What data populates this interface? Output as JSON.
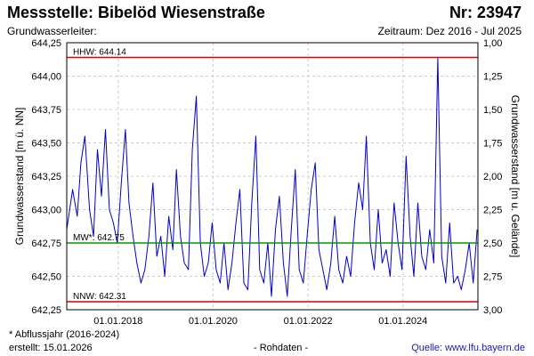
{
  "header": {
    "title_left": "Messstelle: Bibelöd Wiesenstraße",
    "title_right": "Nr: 23947",
    "subtitle_left": "Grundwasserleiter:",
    "subtitle_right": "Zeitraum: Dez 2016 - Jul 2025"
  },
  "footer": {
    "note": "* Abflussjahr (2016-2024)",
    "created": "erstellt:  15.01.2026",
    "middle": "- Rohdaten -",
    "source": "Quelle:  www.lfu.bayern.de"
  },
  "colors": {
    "series": "#0000cc",
    "extreme_lines": "#e00000",
    "mean_line": "#009900",
    "grid": "#cccccc"
  },
  "chart_data": {
    "type": "line",
    "ylabel": "Grundwasserstand [m ü. NN]",
    "ylabel_right": "Grundwasserstand [m u. Gelände]",
    "ylim": [
      642.25,
      644.25
    ],
    "y_ticks": [
      "644,25",
      "644,00",
      "643,75",
      "643,50",
      "643,25",
      "643,00",
      "642,75",
      "642,50",
      "642,25"
    ],
    "y_right_ticks": [
      "1,00",
      "1,25",
      "1,50",
      "1,75",
      "2,00",
      "2,25",
      "2,50",
      "2,75",
      "3,00"
    ],
    "xlim": [
      "2016-12-01",
      "2025-07-31"
    ],
    "x_ticks": [
      "01.01.2018",
      "01.01.2020",
      "01.01.2022",
      "01.01.2024"
    ],
    "x_tick_dates": [
      "2018-01-01",
      "2020-01-01",
      "2022-01-01",
      "2024-01-01"
    ],
    "grid": true,
    "reference_lines": [
      {
        "label": "HHW: 644.14",
        "value": 644.14,
        "type": "max"
      },
      {
        "label": "MW*: 642.75",
        "value": 642.75,
        "type": "mean"
      },
      {
        "label": "NNW: 642.31",
        "value": 642.31,
        "type": "min"
      }
    ],
    "series": [
      {
        "x": [
          "2016-12-01",
          "2017-01-15",
          "2017-02-20",
          "2017-03-20",
          "2017-04-20",
          "2017-05-25",
          "2017-06-25",
          "2017-07-25",
          "2017-08-25",
          "2017-09-25",
          "2017-10-25",
          "2017-11-25",
          "2017-12-25",
          "2018-01-25",
          "2018-02-25",
          "2018-03-25",
          "2018-04-25",
          "2018-05-25",
          "2018-06-25",
          "2018-07-25",
          "2018-08-25",
          "2018-09-25",
          "2018-10-25",
          "2018-11-25",
          "2018-12-25",
          "2019-01-25",
          "2019-02-25",
          "2019-03-25",
          "2019-04-25",
          "2019-05-25",
          "2019-06-25",
          "2019-07-25",
          "2019-08-25",
          "2019-09-25",
          "2019-10-25",
          "2019-11-25",
          "2019-12-25",
          "2020-01-25",
          "2020-02-25",
          "2020-03-25",
          "2020-04-25",
          "2020-05-25",
          "2020-06-25",
          "2020-07-25",
          "2020-08-25",
          "2020-09-25",
          "2020-10-25",
          "2020-11-25",
          "2020-12-25",
          "2021-01-25",
          "2021-02-25",
          "2021-03-25",
          "2021-04-25",
          "2021-05-25",
          "2021-06-25",
          "2021-07-25",
          "2021-08-25",
          "2021-09-25",
          "2021-10-25",
          "2021-11-25",
          "2021-12-25",
          "2022-01-25",
          "2022-02-25",
          "2022-03-25",
          "2022-04-25",
          "2022-05-25",
          "2022-06-25",
          "2022-07-25",
          "2022-08-25",
          "2022-09-25",
          "2022-10-25",
          "2022-11-25",
          "2022-12-25",
          "2023-01-25",
          "2023-02-25",
          "2023-03-25",
          "2023-04-25",
          "2023-05-25",
          "2023-06-25",
          "2023-07-25",
          "2023-08-25",
          "2023-09-25",
          "2023-10-25",
          "2023-11-25",
          "2023-12-25",
          "2024-01-25",
          "2024-02-25",
          "2024-03-25",
          "2024-04-25",
          "2024-05-25",
          "2024-06-25",
          "2024-07-25",
          "2024-08-25",
          "2024-09-25",
          "2024-10-25",
          "2024-11-25",
          "2024-12-25",
          "2025-01-25",
          "2025-02-25",
          "2025-03-25",
          "2025-04-25",
          "2025-05-25",
          "2025-06-25",
          "2025-07-25"
        ],
        "values": [
          642.85,
          643.15,
          642.95,
          643.35,
          643.55,
          643.0,
          642.8,
          643.45,
          643.1,
          643.6,
          643.0,
          642.9,
          642.75,
          643.2,
          643.6,
          643.05,
          642.8,
          642.6,
          642.45,
          642.55,
          642.8,
          643.2,
          642.65,
          642.8,
          642.5,
          642.95,
          642.7,
          643.3,
          642.8,
          642.6,
          642.55,
          643.45,
          643.85,
          642.75,
          642.5,
          642.6,
          642.9,
          642.55,
          642.45,
          642.75,
          642.4,
          642.6,
          642.9,
          643.15,
          642.45,
          642.4,
          643.05,
          643.55,
          642.55,
          642.45,
          642.75,
          642.35,
          642.85,
          643.1,
          642.6,
          642.35,
          642.85,
          643.3,
          642.55,
          642.45,
          642.8,
          643.15,
          643.35,
          642.7,
          642.55,
          642.4,
          642.6,
          642.95,
          642.55,
          642.45,
          642.65,
          642.5,
          642.9,
          643.2,
          643.0,
          643.55,
          642.75,
          642.55,
          643.0,
          642.6,
          642.7,
          642.5,
          643.05,
          642.75,
          642.55,
          643.4,
          642.8,
          642.5,
          643.05,
          642.65,
          642.55,
          642.85,
          642.6,
          644.14,
          642.65,
          642.45,
          642.9,
          642.45,
          642.5,
          642.4,
          642.55,
          642.75,
          642.45,
          642.85
        ]
      }
    ]
  }
}
